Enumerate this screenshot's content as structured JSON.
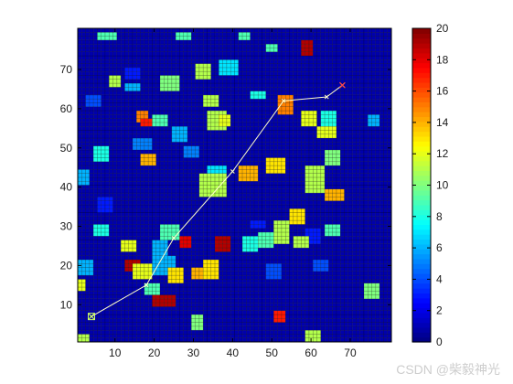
{
  "chart_data": {
    "type": "heatmap",
    "title": "",
    "xlabel": "",
    "ylabel": "",
    "xlim": [
      1,
      80
    ],
    "ylim": [
      1,
      80
    ],
    "x_ticks": [
      10,
      20,
      30,
      40,
      50,
      60,
      70
    ],
    "y_ticks": [
      10,
      20,
      30,
      40,
      50,
      60,
      70
    ],
    "colorbar": {
      "range": [
        0,
        20
      ],
      "ticks": [
        0,
        2,
        4,
        6,
        8,
        10,
        12,
        14,
        16,
        18,
        20
      ],
      "colormap": "jet"
    },
    "background_value": 0.9,
    "blocks": [
      {
        "x": 6,
        "y": 79,
        "w": 5,
        "h": 2,
        "v": 9
      },
      {
        "x": 26,
        "y": 79,
        "w": 4,
        "h": 2,
        "v": 9
      },
      {
        "x": 42,
        "y": 79,
        "w": 3,
        "h": 2,
        "v": 9
      },
      {
        "x": 49,
        "y": 76,
        "w": 3,
        "h": 2,
        "v": 9
      },
      {
        "x": 58,
        "y": 77,
        "w": 3,
        "h": 4,
        "v": 19
      },
      {
        "x": 37,
        "y": 72,
        "w": 5,
        "h": 4,
        "v": 7
      },
      {
        "x": 13,
        "y": 70,
        "w": 4,
        "h": 3,
        "v": 3
      },
      {
        "x": 9,
        "y": 68,
        "w": 3,
        "h": 3,
        "v": 11
      },
      {
        "x": 13,
        "y": 66,
        "w": 4,
        "h": 2,
        "v": 6
      },
      {
        "x": 22,
        "y": 68,
        "w": 5,
        "h": 4,
        "v": 10
      },
      {
        "x": 31,
        "y": 71,
        "w": 4,
        "h": 4,
        "v": 11
      },
      {
        "x": 3,
        "y": 63,
        "w": 4,
        "h": 3,
        "v": 4
      },
      {
        "x": 33,
        "y": 63,
        "w": 4,
        "h": 3,
        "v": 11
      },
      {
        "x": 45,
        "y": 64,
        "w": 4,
        "h": 2,
        "v": 8
      },
      {
        "x": 52,
        "y": 63,
        "w": 4,
        "h": 5,
        "v": 15
      },
      {
        "x": 16,
        "y": 59,
        "w": 3,
        "h": 3,
        "v": 15
      },
      {
        "x": 17,
        "y": 57,
        "w": 4,
        "h": 2,
        "v": 17
      },
      {
        "x": 20,
        "y": 58,
        "w": 4,
        "h": 3,
        "v": 9
      },
      {
        "x": 34,
        "y": 59,
        "w": 5,
        "h": 5,
        "v": 11
      },
      {
        "x": 37,
        "y": 58,
        "w": 3,
        "h": 3,
        "v": 12
      },
      {
        "x": 58,
        "y": 59,
        "w": 4,
        "h": 4,
        "v": 12
      },
      {
        "x": 63,
        "y": 59,
        "w": 4,
        "h": 4,
        "v": 8
      },
      {
        "x": 75,
        "y": 58,
        "w": 3,
        "h": 3,
        "v": 6
      },
      {
        "x": 62,
        "y": 55,
        "w": 5,
        "h": 3,
        "v": 12
      },
      {
        "x": 25,
        "y": 55,
        "w": 4,
        "h": 4,
        "v": 6
      },
      {
        "x": 15,
        "y": 52,
        "w": 5,
        "h": 3,
        "v": 5
      },
      {
        "x": 5,
        "y": 50,
        "w": 4,
        "h": 4,
        "v": 8
      },
      {
        "x": 28,
        "y": 50,
        "w": 4,
        "h": 3,
        "v": 5
      },
      {
        "x": 17,
        "y": 48,
        "w": 4,
        "h": 3,
        "v": 14
      },
      {
        "x": 64,
        "y": 49,
        "w": 4,
        "h": 4,
        "v": 10
      },
      {
        "x": 34,
        "y": 45,
        "w": 5,
        "h": 3,
        "v": 7
      },
      {
        "x": 42,
        "y": 45,
        "w": 5,
        "h": 4,
        "v": 14
      },
      {
        "x": 49,
        "y": 47,
        "w": 5,
        "h": 4,
        "v": 13
      },
      {
        "x": 1,
        "y": 44,
        "w": 3,
        "h": 4,
        "v": 6
      },
      {
        "x": 32,
        "y": 43,
        "w": 7,
        "h": 6,
        "v": 11
      },
      {
        "x": 59,
        "y": 45,
        "w": 5,
        "h": 7,
        "v": 11
      },
      {
        "x": 64,
        "y": 39,
        "w": 5,
        "h": 3,
        "v": 14
      },
      {
        "x": 6,
        "y": 37,
        "w": 4,
        "h": 4,
        "v": 3
      },
      {
        "x": 55,
        "y": 34,
        "w": 4,
        "h": 4,
        "v": 13
      },
      {
        "x": 51,
        "y": 31,
        "w": 4,
        "h": 6,
        "v": 11
      },
      {
        "x": 45,
        "y": 31,
        "w": 4,
        "h": 2,
        "v": 3
      },
      {
        "x": 64,
        "y": 30,
        "w": 4,
        "h": 3,
        "v": 9
      },
      {
        "x": 5,
        "y": 30,
        "w": 4,
        "h": 3,
        "v": 8
      },
      {
        "x": 22,
        "y": 30,
        "w": 5,
        "h": 4,
        "v": 9
      },
      {
        "x": 47,
        "y": 28,
        "w": 4,
        "h": 4,
        "v": 9
      },
      {
        "x": 59,
        "y": 29,
        "w": 4,
        "h": 4,
        "v": 3
      },
      {
        "x": 12,
        "y": 26,
        "w": 4,
        "h": 3,
        "v": 12
      },
      {
        "x": 20,
        "y": 26,
        "w": 4,
        "h": 4,
        "v": 6
      },
      {
        "x": 27,
        "y": 27,
        "w": 3,
        "h": 3,
        "v": 18
      },
      {
        "x": 36,
        "y": 27,
        "w": 4,
        "h": 4,
        "v": 19
      },
      {
        "x": 43,
        "y": 27,
        "w": 4,
        "h": 4,
        "v": 8
      },
      {
        "x": 56,
        "y": 27,
        "w": 4,
        "h": 3,
        "v": 11
      },
      {
        "x": 1,
        "y": 21,
        "w": 4,
        "h": 4,
        "v": 6
      },
      {
        "x": 13,
        "y": 21,
        "w": 4,
        "h": 3,
        "v": 19
      },
      {
        "x": 15,
        "y": 20,
        "w": 5,
        "h": 4,
        "v": 12
      },
      {
        "x": 20,
        "y": 22,
        "w": 6,
        "h": 5,
        "v": 6
      },
      {
        "x": 24,
        "y": 19,
        "w": 4,
        "h": 4,
        "v": 13
      },
      {
        "x": 30,
        "y": 19,
        "w": 3,
        "h": 3,
        "v": 14
      },
      {
        "x": 33,
        "y": 21,
        "w": 4,
        "h": 5,
        "v": 13
      },
      {
        "x": 49,
        "y": 20,
        "w": 4,
        "h": 4,
        "v": 4
      },
      {
        "x": 61,
        "y": 21,
        "w": 4,
        "h": 3,
        "v": 4
      },
      {
        "x": 1,
        "y": 16,
        "w": 2,
        "h": 3,
        "v": 12
      },
      {
        "x": 18,
        "y": 15,
        "w": 4,
        "h": 3,
        "v": 9
      },
      {
        "x": 20,
        "y": 12,
        "w": 6,
        "h": 3,
        "v": 19
      },
      {
        "x": 74,
        "y": 15,
        "w": 4,
        "h": 4,
        "v": 10
      },
      {
        "x": 51,
        "y": 8,
        "w": 3,
        "h": 3,
        "v": 17
      },
      {
        "x": 30,
        "y": 7,
        "w": 3,
        "h": 4,
        "v": 10
      },
      {
        "x": 1,
        "y": 2,
        "w": 3,
        "h": 2,
        "v": 11
      },
      {
        "x": 59,
        "y": 3,
        "w": 4,
        "h": 3,
        "v": 11
      }
    ],
    "path": {
      "color": "#ffffcc",
      "points": [
        [
          4,
          7
        ],
        [
          18,
          15
        ],
        [
          25,
          27
        ],
        [
          40,
          44
        ],
        [
          53,
          62
        ],
        [
          64,
          63
        ],
        [
          68,
          66
        ]
      ],
      "start_marker": [
        4,
        7
      ],
      "end_marker": [
        68,
        66
      ]
    }
  },
  "watermark": "CSDN @柴毅神光"
}
